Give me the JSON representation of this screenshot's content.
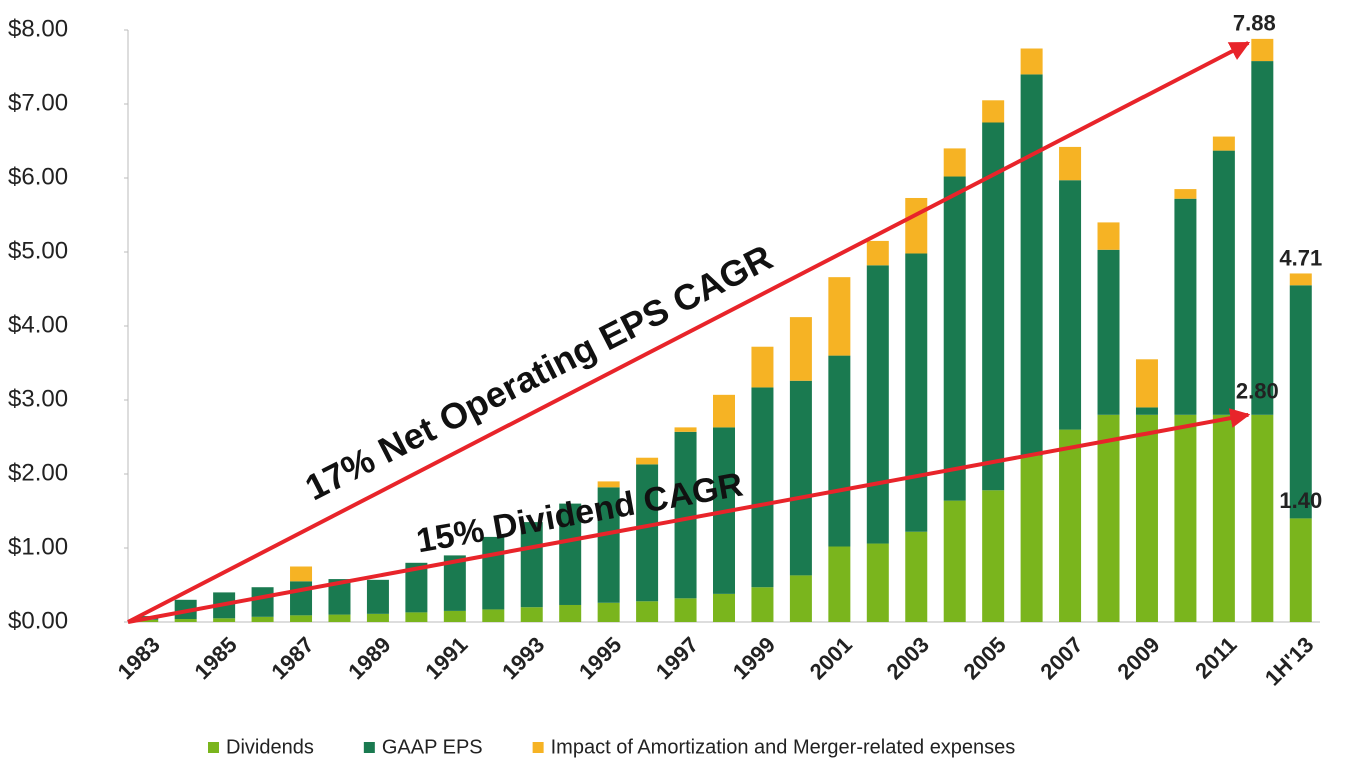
{
  "chart_data": {
    "type": "stacked_bar",
    "categories": [
      "1983",
      null,
      "1985",
      null,
      "1987",
      null,
      "1989",
      null,
      "1991",
      null,
      "1993",
      null,
      "1995",
      null,
      "1997",
      null,
      "1999",
      null,
      "2001",
      null,
      "2003",
      null,
      "2005",
      null,
      "2007",
      null,
      "2009",
      null,
      "2011",
      null,
      "1H'13"
    ],
    "series": [
      {
        "name": "Dividends",
        "color": "#7ab51d",
        "values": [
          0.03,
          0.04,
          0.05,
          0.07,
          0.09,
          0.1,
          0.11,
          0.13,
          0.15,
          0.17,
          0.2,
          0.23,
          0.26,
          0.28,
          0.32,
          0.38,
          0.47,
          0.63,
          1.02,
          1.06,
          1.22,
          1.64,
          1.78,
          2.25,
          2.6,
          2.8,
          2.8,
          2.8,
          2.8,
          2.8,
          1.4
        ],
        "value_labels": [
          null,
          null,
          null,
          null,
          null,
          null,
          null,
          null,
          null,
          null,
          null,
          null,
          null,
          null,
          null,
          null,
          null,
          null,
          null,
          null,
          null,
          null,
          null,
          null,
          null,
          null,
          null,
          null,
          null,
          "2.80",
          "1.40"
        ]
      },
      {
        "name": "GAAP EPS",
        "color": "#1a7a50",
        "values": [
          0.05,
          0.26,
          0.35,
          0.4,
          0.46,
          0.48,
          0.46,
          0.67,
          0.75,
          0.98,
          1.15,
          1.37,
          1.56,
          1.85,
          2.25,
          2.25,
          2.7,
          2.63,
          2.58,
          3.76,
          3.76,
          4.38,
          4.97,
          5.15,
          3.37,
          2.23,
          0.1,
          2.92,
          3.57,
          4.78,
          3.15
        ]
      },
      {
        "name": "Impact of Amortization and Merger-related expenses",
        "color": "#f6b324",
        "values": [
          0,
          0,
          0,
          0,
          0.2,
          0,
          0,
          0,
          0,
          0,
          0,
          0,
          0.08,
          0.09,
          0.06,
          0.44,
          0.55,
          0.86,
          1.06,
          0.33,
          0.75,
          0.38,
          0.3,
          0.35,
          0.45,
          0.37,
          0.65,
          0.13,
          0.19,
          0.3,
          0.16
        ]
      }
    ],
    "total_labels": [
      {
        "value": 7.88,
        "label": "7.88"
      },
      {
        "value": 4.71,
        "label": "4.71"
      }
    ],
    "annotations": [
      "17% Net Operating EPS CAGR",
      "15% Dividend CAGR"
    ],
    "ylim": [
      0,
      8
    ],
    "yticks": [
      {
        "value": 0,
        "label": "$0.00"
      },
      {
        "value": 1,
        "label": "$1.00"
      },
      {
        "value": 2,
        "label": "$2.00"
      },
      {
        "value": 3,
        "label": "$3.00"
      },
      {
        "value": 4,
        "label": "$4.00"
      },
      {
        "value": 5,
        "label": "$5.00"
      },
      {
        "value": 6,
        "label": "$6.00"
      },
      {
        "value": 7,
        "label": "$7.00"
      },
      {
        "value": 8,
        "label": "$8.00"
      }
    ],
    "legend": "bottom"
  }
}
